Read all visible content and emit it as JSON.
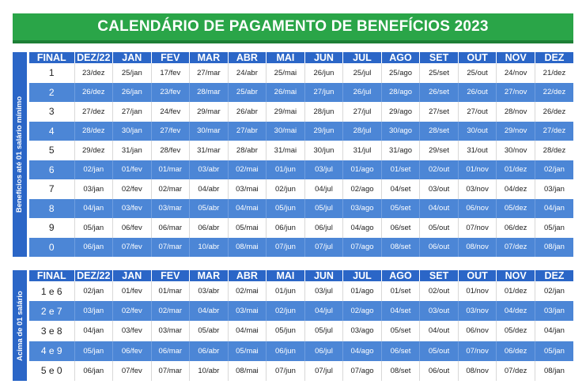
{
  "title": "CALENDÁRIO DE PAGAMENTO DE BENEFÍCIOS 2023",
  "columns": [
    "FINAL",
    "DEZ/22",
    "JAN",
    "FEV",
    "MAR",
    "ABR",
    "MAI",
    "JUN",
    "JUL",
    "AGO",
    "SET",
    "OUT",
    "NOV",
    "DEZ"
  ],
  "section1": {
    "label": "Benefícios até 01 salário mínimo",
    "rows": [
      [
        "1",
        "23/dez",
        "25/jan",
        "17/fev",
        "27/mar",
        "24/abr",
        "25/mai",
        "26/jun",
        "25/jul",
        "25/ago",
        "25/set",
        "25/out",
        "24/nov",
        "21/dez"
      ],
      [
        "2",
        "26/dez",
        "26/jan",
        "23/fev",
        "28/mar",
        "25/abr",
        "26/mai",
        "27/jun",
        "26/jul",
        "28/ago",
        "26/set",
        "26/out",
        "27/nov",
        "22/dez"
      ],
      [
        "3",
        "27/dez",
        "27/jan",
        "24/fev",
        "29/mar",
        "26/abr",
        "29/mai",
        "28/jun",
        "27/jul",
        "29/ago",
        "27/set",
        "27/out",
        "28/nov",
        "26/dez"
      ],
      [
        "4",
        "28/dez",
        "30/jan",
        "27/fev",
        "30/mar",
        "27/abr",
        "30/mai",
        "29/jun",
        "28/jul",
        "30/ago",
        "28/set",
        "30/out",
        "29/nov",
        "27/dez"
      ],
      [
        "5",
        "29/dez",
        "31/jan",
        "28/fev",
        "31/mar",
        "28/abr",
        "31/mai",
        "30/jun",
        "31/jul",
        "31/ago",
        "29/set",
        "31/out",
        "30/nov",
        "28/dez"
      ],
      [
        "6",
        "02/jan",
        "01/fev",
        "01/mar",
        "03/abr",
        "02/mai",
        "01/jun",
        "03/jul",
        "01/ago",
        "01/set",
        "02/out",
        "01/nov",
        "01/dez",
        "02/jan"
      ],
      [
        "7",
        "03/jan",
        "02/fev",
        "02/mar",
        "04/abr",
        "03/mai",
        "02/jun",
        "04/jul",
        "02/ago",
        "04/set",
        "03/out",
        "03/nov",
        "04/dez",
        "03/jan"
      ],
      [
        "8",
        "04/jan",
        "03/fev",
        "03/mar",
        "05/abr",
        "04/mai",
        "05/jun",
        "05/jul",
        "03/ago",
        "05/set",
        "04/out",
        "06/nov",
        "05/dez",
        "04/jan"
      ],
      [
        "9",
        "05/jan",
        "06/fev",
        "06/mar",
        "06/abr",
        "05/mai",
        "06/jun",
        "06/jul",
        "04/ago",
        "06/set",
        "05/out",
        "07/nov",
        "06/dez",
        "05/jan"
      ],
      [
        "0",
        "06/jan",
        "07/fev",
        "07/mar",
        "10/abr",
        "08/mai",
        "07/jun",
        "07/jul",
        "07/ago",
        "08/set",
        "06/out",
        "08/nov",
        "07/dez",
        "08/jan"
      ]
    ]
  },
  "section2": {
    "label": "Acima de 01 salário",
    "rows": [
      [
        "1 e 6",
        "02/jan",
        "01/fev",
        "01/mar",
        "03/abr",
        "02/mai",
        "01/jun",
        "03/jul",
        "01/ago",
        "01/set",
        "02/out",
        "01/nov",
        "01/dez",
        "02/jan"
      ],
      [
        "2 e 7",
        "03/jan",
        "02/fev",
        "02/mar",
        "04/abr",
        "03/mai",
        "02/jun",
        "04/jul",
        "02/ago",
        "04/set",
        "03/out",
        "03/nov",
        "04/dez",
        "03/jan"
      ],
      [
        "3 e 8",
        "04/jan",
        "03/fev",
        "03/mar",
        "05/abr",
        "04/mai",
        "05/jun",
        "05/jul",
        "03/ago",
        "05/set",
        "04/out",
        "06/nov",
        "05/dez",
        "04/jan"
      ],
      [
        "4 e 9",
        "05/jan",
        "06/fev",
        "06/mar",
        "06/abr",
        "05/mai",
        "06/jun",
        "06/jul",
        "04/ago",
        "06/set",
        "05/out",
        "07/nov",
        "06/dez",
        "05/jan"
      ],
      [
        "5 e 0",
        "06/jan",
        "07/fev",
        "07/mar",
        "10/abr",
        "08/mai",
        "07/jun",
        "07/jul",
        "07/ago",
        "08/set",
        "06/out",
        "08/nov",
        "07/dez",
        "08/jan"
      ]
    ]
  }
}
